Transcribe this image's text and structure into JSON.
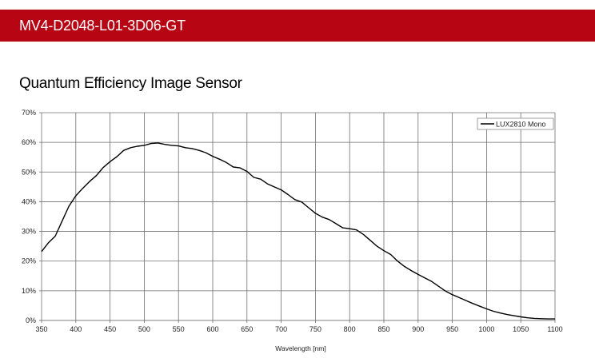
{
  "header": {
    "product_code": "MV4-D2048-L01-3D06-GT",
    "color": "#b70514"
  },
  "section": {
    "title": "Quantum Efficiency Image Sensor"
  },
  "chart_data": {
    "type": "line",
    "title": "Quantum Efficiency Image Sensor",
    "xlabel": "Wavelength [nm]",
    "ylabel": "",
    "xlim": [
      350,
      1100
    ],
    "ylim": [
      0,
      70
    ],
    "grid": true,
    "legend_position": "top-right",
    "x_ticks": [
      350,
      400,
      450,
      500,
      550,
      600,
      650,
      700,
      750,
      800,
      850,
      900,
      950,
      1000,
      1050,
      1100
    ],
    "y_ticks": [
      "0%",
      "10%",
      "20%",
      "30%",
      "40%",
      "50%",
      "60%",
      "70%"
    ],
    "series": [
      {
        "name": "LUX2810 Mono",
        "color": "#000000",
        "x": [
          350,
          360,
          370,
          380,
          390,
          400,
          410,
          420,
          430,
          440,
          450,
          460,
          470,
          480,
          490,
          500,
          510,
          520,
          530,
          540,
          550,
          560,
          570,
          580,
          590,
          600,
          610,
          620,
          630,
          640,
          650,
          660,
          670,
          680,
          690,
          700,
          710,
          720,
          730,
          740,
          750,
          760,
          770,
          780,
          790,
          800,
          810,
          820,
          830,
          840,
          850,
          860,
          870,
          880,
          890,
          900,
          910,
          920,
          930,
          940,
          950,
          960,
          970,
          980,
          990,
          1000,
          1010,
          1020,
          1030,
          1040,
          1050,
          1060,
          1070,
          1080,
          1090,
          1100
        ],
        "y": [
          23.2,
          26.2,
          28.4,
          33.5,
          38.5,
          42.0,
          44.5,
          46.8,
          48.8,
          51.5,
          53.5,
          55.2,
          57.3,
          58.2,
          58.7,
          59.0,
          59.6,
          59.8,
          59.3,
          59.0,
          58.8,
          58.2,
          57.9,
          57.3,
          56.5,
          55.3,
          54.3,
          53.2,
          51.7,
          51.4,
          50.2,
          48.2,
          47.6,
          46.0,
          45.0,
          44.0,
          42.4,
          40.7,
          39.9,
          38.0,
          36.1,
          34.8,
          34.0,
          32.6,
          31.2,
          30.9,
          30.5,
          29.0,
          27.0,
          25.0,
          23.5,
          22.2,
          20.0,
          18.2,
          16.8,
          15.5,
          14.3,
          13.1,
          11.5,
          9.9,
          8.7,
          7.7,
          6.7,
          5.7,
          4.8,
          3.9,
          3.1,
          2.5,
          2.0,
          1.6,
          1.2,
          0.9,
          0.7,
          0.6,
          0.5,
          0.5
        ]
      }
    ]
  }
}
